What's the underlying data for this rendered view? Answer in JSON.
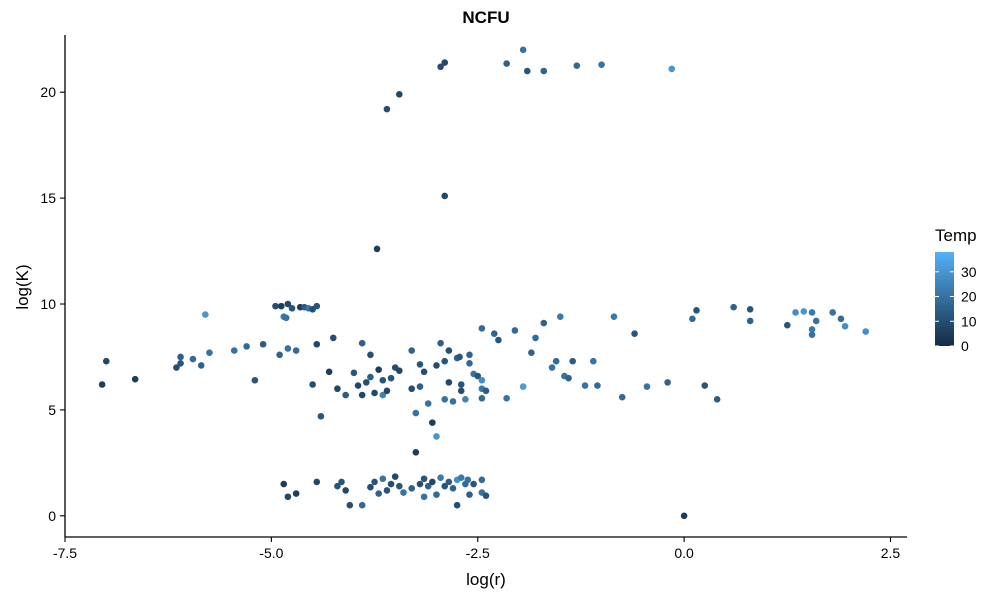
{
  "chart_data": {
    "type": "scatter",
    "title": "NCFU",
    "xlabel": "log(r)",
    "ylabel": "log(K)",
    "xlim": [
      -7.5,
      2.7
    ],
    "ylim": [
      -1,
      22.7
    ],
    "x_ticks": [
      -7.5,
      -5.0,
      -2.5,
      0.0,
      2.5
    ],
    "x_tick_labels": [
      "-7.5",
      "-5.0",
      "-2.5",
      "0.0",
      "2.5"
    ],
    "y_ticks": [
      0,
      5,
      10,
      15,
      20
    ],
    "y_tick_labels": [
      "0",
      "5",
      "10",
      "15",
      "20"
    ],
    "grid": false,
    "legend": {
      "title": "Temp",
      "placement": "right",
      "min": 0,
      "max": 38,
      "ticks": [
        0,
        10,
        20,
        30
      ],
      "tick_labels": [
        "0",
        "10",
        "20",
        "30"
      ],
      "color_low": "#132B43",
      "color_high": "#56B1F7"
    },
    "points": [
      [
        -7.05,
        6.2,
        5
      ],
      [
        -7.0,
        7.3,
        8
      ],
      [
        -6.65,
        6.45,
        5
      ],
      [
        -6.15,
        7.0,
        10
      ],
      [
        -6.1,
        7.2,
        12
      ],
      [
        -6.1,
        7.5,
        15
      ],
      [
        -5.95,
        7.4,
        18
      ],
      [
        -5.85,
        7.1,
        16
      ],
      [
        -5.8,
        9.5,
        30
      ],
      [
        -5.75,
        7.7,
        20
      ],
      [
        -5.45,
        7.8,
        20
      ],
      [
        -5.3,
        8.0,
        18
      ],
      [
        -5.2,
        6.4,
        12
      ],
      [
        -5.1,
        8.1,
        14
      ],
      [
        -4.95,
        9.9,
        10
      ],
      [
        -4.9,
        7.6,
        16
      ],
      [
        -4.88,
        9.9,
        5
      ],
      [
        -4.85,
        9.4,
        22
      ],
      [
        -4.82,
        9.35,
        20
      ],
      [
        -4.8,
        7.9,
        20
      ],
      [
        -4.8,
        10.0,
        8
      ],
      [
        -4.75,
        9.8,
        12
      ],
      [
        -4.7,
        7.8,
        18
      ],
      [
        -4.65,
        9.85,
        5
      ],
      [
        -4.6,
        9.85,
        14
      ],
      [
        -4.55,
        9.8,
        20
      ],
      [
        -4.5,
        9.75,
        10
      ],
      [
        -4.45,
        8.1,
        8
      ],
      [
        -4.45,
        9.9,
        12
      ],
      [
        -4.5,
        6.2,
        10
      ],
      [
        -4.4,
        4.7,
        12
      ],
      [
        -4.3,
        6.8,
        5
      ],
      [
        -4.25,
        8.4,
        10
      ],
      [
        -4.2,
        6.0,
        8
      ],
      [
        -4.1,
        5.7,
        14
      ],
      [
        -4.0,
        6.75,
        12
      ],
      [
        -3.95,
        6.15,
        8
      ],
      [
        -3.9,
        8.15,
        15
      ],
      [
        -3.9,
        5.7,
        8
      ],
      [
        -3.85,
        6.3,
        10
      ],
      [
        -3.8,
        6.55,
        15
      ],
      [
        -3.8,
        7.6,
        10
      ],
      [
        -3.75,
        5.8,
        8
      ],
      [
        -3.72,
        12.6,
        5
      ],
      [
        -3.7,
        6.9,
        5
      ],
      [
        -3.65,
        6.4,
        12
      ],
      [
        -3.65,
        5.7,
        25
      ],
      [
        -3.6,
        5.9,
        8
      ],
      [
        -3.55,
        6.5,
        12
      ],
      [
        -3.5,
        7.0,
        10
      ],
      [
        -3.45,
        6.85,
        8
      ],
      [
        -3.6,
        19.2,
        10
      ],
      [
        -3.45,
        19.9,
        8
      ],
      [
        -3.3,
        7.8,
        16
      ],
      [
        -3.3,
        6.0,
        10
      ],
      [
        -3.25,
        4.85,
        20
      ],
      [
        -3.25,
        3.0,
        5
      ],
      [
        -3.2,
        7.15,
        12
      ],
      [
        -3.2,
        6.1,
        15
      ],
      [
        -3.15,
        6.8,
        10
      ],
      [
        -3.1,
        5.3,
        20
      ],
      [
        -3.05,
        4.4,
        5
      ],
      [
        -3.0,
        7.1,
        10
      ],
      [
        -2.95,
        8.15,
        15
      ],
      [
        -2.9,
        7.3,
        12
      ],
      [
        -2.85,
        7.8,
        10
      ],
      [
        -2.85,
        6.3,
        8
      ],
      [
        -2.8,
        5.4,
        20
      ],
      [
        -2.75,
        7.45,
        16
      ],
      [
        -2.72,
        7.5,
        12
      ],
      [
        -2.7,
        6.2,
        12
      ],
      [
        -2.7,
        5.9,
        10
      ],
      [
        -2.65,
        5.5,
        25
      ],
      [
        -2.6,
        7.2,
        18
      ],
      [
        -2.6,
        7.6,
        16
      ],
      [
        -2.55,
        6.7,
        20
      ],
      [
        -2.5,
        6.6,
        12
      ],
      [
        -2.45,
        6.4,
        28
      ],
      [
        -2.45,
        6.0,
        22
      ],
      [
        -2.4,
        5.9,
        14
      ],
      [
        -2.45,
        5.55,
        18
      ],
      [
        -2.45,
        8.85,
        18
      ],
      [
        -2.3,
        8.6,
        16
      ],
      [
        -2.25,
        8.3,
        12
      ],
      [
        -2.15,
        5.55,
        20
      ],
      [
        -2.05,
        8.75,
        18
      ],
      [
        -1.95,
        6.1,
        32
      ],
      [
        -1.85,
        7.7,
        16
      ],
      [
        -1.8,
        8.4,
        18
      ],
      [
        -1.7,
        9.1,
        16
      ],
      [
        -1.6,
        7.0,
        20
      ],
      [
        -1.55,
        7.3,
        18
      ],
      [
        -1.5,
        9.4,
        22
      ],
      [
        -1.45,
        6.6,
        20
      ],
      [
        -1.4,
        6.5,
        16
      ],
      [
        -1.35,
        7.3,
        14
      ],
      [
        -1.2,
        6.15,
        20
      ],
      [
        -1.1,
        7.3,
        20
      ],
      [
        -1.05,
        6.15,
        18
      ],
      [
        -0.85,
        9.4,
        22
      ],
      [
        -0.75,
        5.6,
        18
      ],
      [
        -0.6,
        8.6,
        12
      ],
      [
        -0.45,
        6.1,
        20
      ],
      [
        -0.2,
        6.3,
        16
      ],
      [
        0.1,
        9.3,
        18
      ],
      [
        0.15,
        9.7,
        12
      ],
      [
        0.25,
        6.15,
        12
      ],
      [
        0.4,
        5.5,
        14
      ],
      [
        0.6,
        9.85,
        16
      ],
      [
        0.8,
        9.75,
        12
      ],
      [
        0.8,
        9.2,
        16
      ],
      [
        1.25,
        9.0,
        12
      ],
      [
        1.35,
        9.6,
        28
      ],
      [
        1.45,
        9.65,
        30
      ],
      [
        1.55,
        8.55,
        20
      ],
      [
        1.55,
        8.8,
        22
      ],
      [
        1.55,
        9.6,
        22
      ],
      [
        1.6,
        9.2,
        20
      ],
      [
        1.8,
        9.6,
        20
      ],
      [
        1.9,
        9.3,
        18
      ],
      [
        1.95,
        8.95,
        28
      ],
      [
        2.2,
        8.7,
        28
      ],
      [
        -2.9,
        15.1,
        8
      ],
      [
        -2.95,
        21.2,
        10
      ],
      [
        -2.9,
        21.4,
        8
      ],
      [
        -2.15,
        21.35,
        16
      ],
      [
        -1.95,
        22.0,
        20
      ],
      [
        -1.9,
        21.0,
        12
      ],
      [
        -1.7,
        21.0,
        16
      ],
      [
        -1.3,
        21.25,
        18
      ],
      [
        -1.0,
        21.3,
        20
      ],
      [
        -0.15,
        21.1,
        30
      ],
      [
        0.0,
        0.0,
        5
      ],
      [
        -4.85,
        1.5,
        5
      ],
      [
        -4.8,
        0.9,
        8
      ],
      [
        -4.7,
        1.05,
        5
      ],
      [
        -4.45,
        1.6,
        8
      ],
      [
        -4.2,
        1.4,
        12
      ],
      [
        -4.15,
        1.6,
        12
      ],
      [
        -4.1,
        1.2,
        8
      ],
      [
        -4.05,
        0.5,
        10
      ],
      [
        -3.9,
        0.5,
        18
      ],
      [
        -3.8,
        1.35,
        10
      ],
      [
        -3.75,
        1.6,
        12
      ],
      [
        -3.7,
        1.05,
        16
      ],
      [
        -3.65,
        1.75,
        20
      ],
      [
        -3.6,
        1.2,
        12
      ],
      [
        -3.55,
        1.5,
        10
      ],
      [
        -3.5,
        1.85,
        8
      ],
      [
        -3.45,
        1.4,
        12
      ],
      [
        -3.4,
        1.1,
        20
      ],
      [
        -3.3,
        1.3,
        16
      ],
      [
        -3.2,
        1.5,
        10
      ],
      [
        -3.15,
        1.75,
        12
      ],
      [
        -3.15,
        0.9,
        20
      ],
      [
        -3.1,
        1.4,
        15
      ],
      [
        -3.05,
        1.6,
        8
      ],
      [
        -3.0,
        1.0,
        18
      ],
      [
        -2.95,
        1.8,
        22
      ],
      [
        -2.9,
        1.4,
        12
      ],
      [
        -2.85,
        1.6,
        14
      ],
      [
        -2.8,
        1.3,
        16
      ],
      [
        -2.75,
        0.5,
        10
      ],
      [
        -2.75,
        1.7,
        28
      ],
      [
        -2.7,
        1.8,
        22
      ],
      [
        -2.65,
        1.5,
        18
      ],
      [
        -2.62,
        1.7,
        20
      ],
      [
        -2.6,
        1.0,
        15
      ],
      [
        -2.55,
        1.5,
        12
      ],
      [
        -2.45,
        1.7,
        18
      ],
      [
        -2.45,
        1.1,
        20
      ],
      [
        -2.4,
        0.95,
        12
      ],
      [
        -3.0,
        3.75,
        30
      ],
      [
        -2.9,
        5.5,
        20
      ]
    ]
  }
}
